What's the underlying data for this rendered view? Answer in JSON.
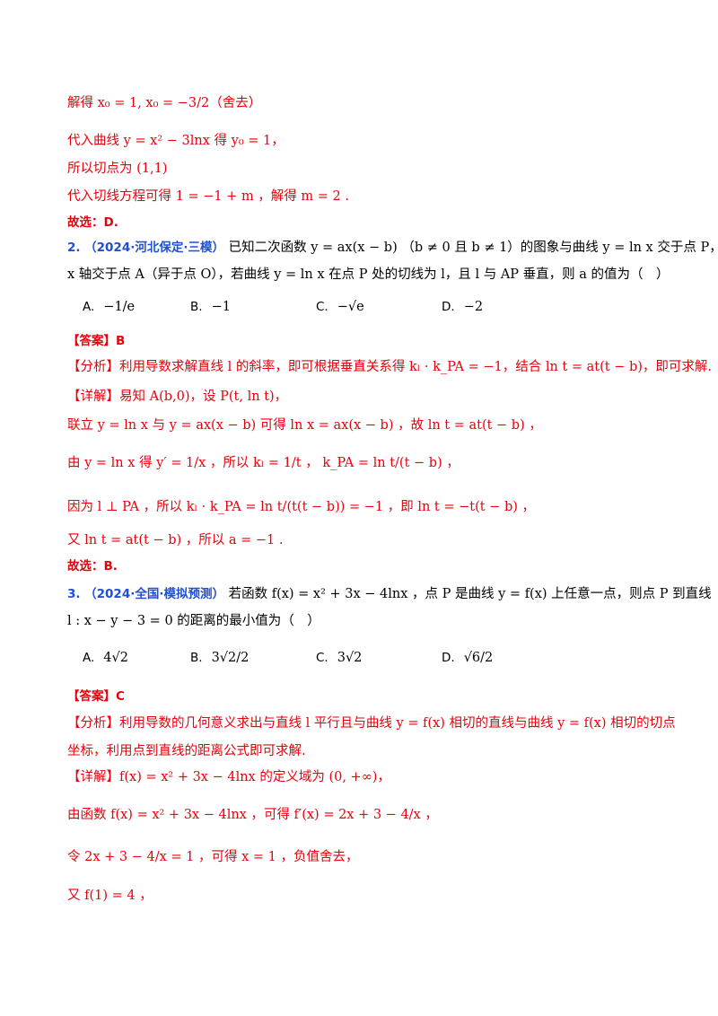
{
  "lines": {
    "l1": "解得 x₀ = 1, x₀ = −3/2（舍去）",
    "l2": "代入曲线 y = x² − 3lnx 得 y₀ = 1，",
    "l3": "所以切点为 (1,1)",
    "l4": "代入切线方程可得 1 = −1 + m ，解得 m = 2 .",
    "l5": "故选：D."
  },
  "q2": {
    "num": "2.",
    "source": "（2024·河北保定·三模）",
    "stem_line1": "已知二次函数 y = ax(x − b) （b ≠ 0 且 b ≠ 1）的图象与曲线 y = ln x 交于点 P，与",
    "stem_line2": "x 轴交于点 A（异于点 O），若曲线 y = ln x 在点 P 处的切线为 l，且 l 与 AP 垂直，则 a 的值为（　）",
    "options": [
      {
        "label": "A.",
        "value": "−1/e"
      },
      {
        "label": "B.",
        "value": "−1"
      },
      {
        "label": "C.",
        "value": "−√e"
      },
      {
        "label": "D.",
        "value": "−2"
      }
    ],
    "answer": "【答案】B",
    "analysis": "【分析】利用导数求解直线 l 的斜率，即可根据垂直关系得 kₗ · k_PA = −1，结合 ln t = at(t − b)，即可求解.",
    "detail1": "【详解】易知 A(b,0)，设 P(t, ln t)，",
    "detail2": "联立 y = ln x 与 y = ax(x − b) 可得 ln x = ax(x − b) ，故 ln t = at(t − b) ，",
    "detail3": "由 y = ln x 得 y′ = 1/x ，所以 kₗ = 1/t ，  k_PA = ln t/(t − b) ，",
    "detail4": "因为 l ⊥ PA ，所以 kₗ · k_PA = ln t/(t(t − b)) = −1 ，即 ln t = −t(t − b) ，",
    "detail5": "又 ln t = at(t − b) ，所以 a = −1 .",
    "detail6": "故选：B."
  },
  "q3": {
    "num": "3.",
    "source": "（2024·全国·模拟预测）",
    "stem_line1": "若函数 f(x) = x² + 3x − 4lnx ，点 P 是曲线 y = f(x) 上任意一点，则点 P 到直线",
    "stem_line2": "l : x − y − 3 = 0 的距离的最小值为（　）",
    "options": [
      {
        "label": "A.",
        "value": "4√2"
      },
      {
        "label": "B.",
        "value": "3√2/2"
      },
      {
        "label": "C.",
        "value": "3√2"
      },
      {
        "label": "D.",
        "value": "√6/2"
      }
    ],
    "answer": "【答案】C",
    "analysis1": "【分析】利用导数的几何意义求出与直线 l 平行且与曲线 y = f(x) 相切的直线与曲线 y = f(x) 相切的切点",
    "analysis2": "坐标，利用点到直线的距离公式即可求解.",
    "detail1": "【详解】f(x) = x² + 3x − 4lnx 的定义域为 (0, +∞)，",
    "detail2": "由函数 f(x) = x² + 3x − 4lnx ，可得 f′(x) = 2x + 3 − 4/x ，",
    "detail3": "令 2x + 3 − 4/x = 1 ，可得 x = 1 ，负值舍去，",
    "detail4": "又 f(1) = 4 ，"
  }
}
